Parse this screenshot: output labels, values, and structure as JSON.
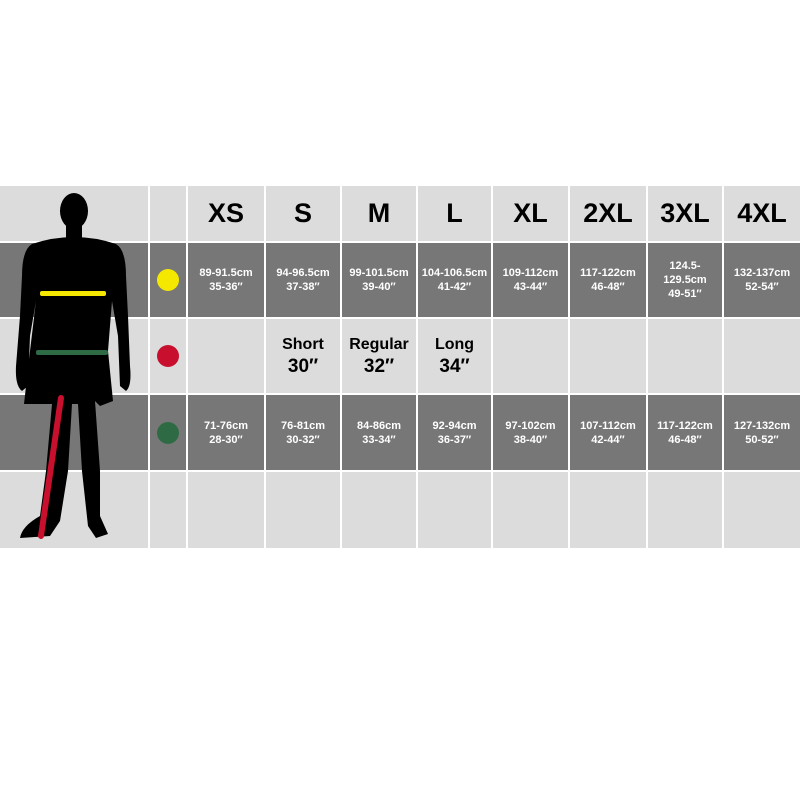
{
  "sizes": [
    "XS",
    "S",
    "M",
    "L",
    "XL",
    "2XL",
    "3XL",
    "4XL"
  ],
  "chest": {
    "color": "#f5e800",
    "values": [
      {
        "cm": "89-91.5cm",
        "in": "35-36″"
      },
      {
        "cm": "94-96.5cm",
        "in": "37-38″"
      },
      {
        "cm": "99-101.5cm",
        "in": "39-40″"
      },
      {
        "cm": "104-106.5cm",
        "in": "41-42″"
      },
      {
        "cm": "109-112cm",
        "in": "43-44″"
      },
      {
        "cm": "117-122cm",
        "in": "46-48″"
      },
      {
        "cm": "124.5-129.5cm",
        "in": "49-51″"
      },
      {
        "cm": "132-137cm",
        "in": "52-54″"
      }
    ]
  },
  "inseam": {
    "color": "#c8102e",
    "values": [
      {
        "label": "Short",
        "value": "30″"
      },
      {
        "label": "Regular",
        "value": "32″"
      },
      {
        "label": "Long",
        "value": "34″"
      }
    ]
  },
  "waist": {
    "color": "#2e6b45",
    "values": [
      {
        "cm": "71-76cm",
        "in": "28-30″"
      },
      {
        "cm": "76-81cm",
        "in": "30-32″"
      },
      {
        "cm": "84-86cm",
        "in": "33-34″"
      },
      {
        "cm": "92-94cm",
        "in": "36-37″"
      },
      {
        "cm": "97-102cm",
        "in": "38-40″"
      },
      {
        "cm": "107-112cm",
        "in": "42-44″"
      },
      {
        "cm": "117-122cm",
        "in": "46-48″"
      },
      {
        "cm": "127-132cm",
        "in": "50-52″"
      }
    ]
  }
}
